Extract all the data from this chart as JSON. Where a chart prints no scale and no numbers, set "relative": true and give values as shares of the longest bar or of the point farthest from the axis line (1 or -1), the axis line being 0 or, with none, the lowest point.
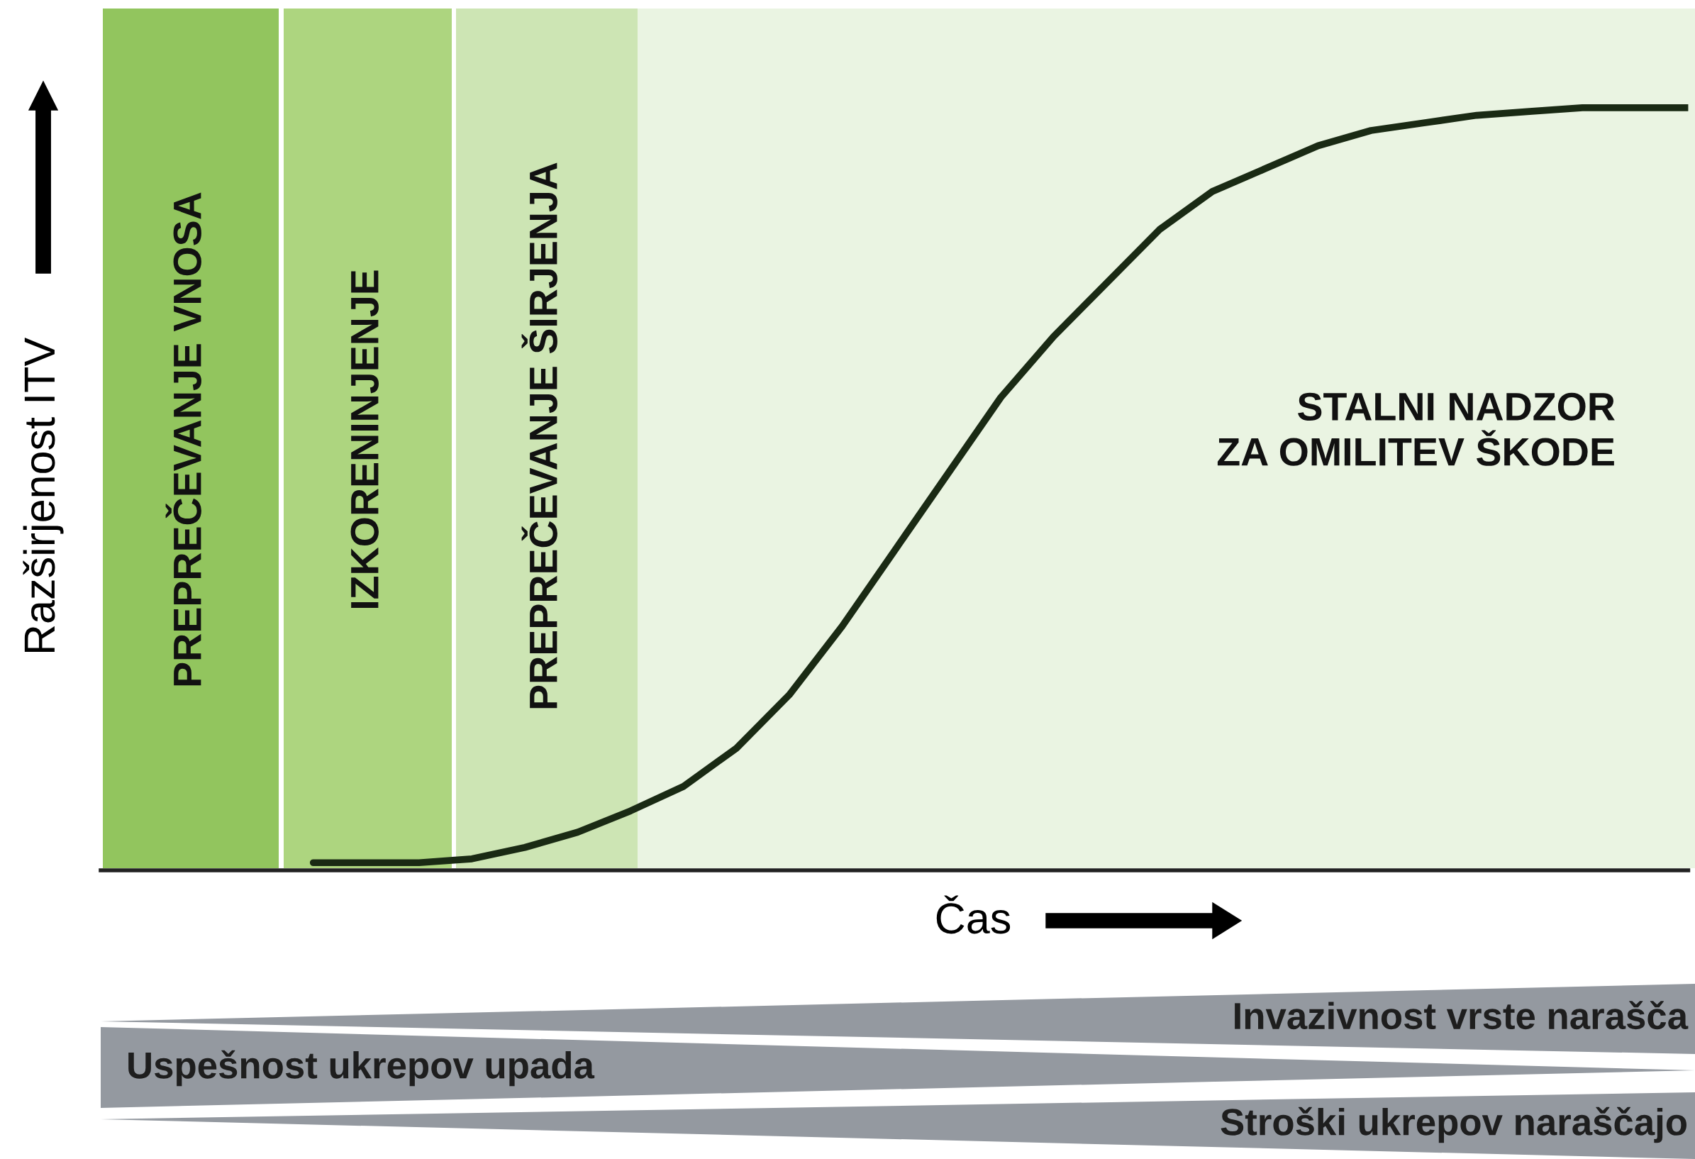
{
  "chart_data": {
    "type": "line",
    "relative": true,
    "xlabel": "Čas",
    "ylabel": "Razširjenost ITV",
    "categories": [
      null,
      null,
      null,
      null,
      null,
      null,
      null,
      null,
      null,
      null,
      null,
      null,
      null,
      null,
      null,
      null,
      null,
      null,
      null,
      null,
      null,
      null,
      null,
      null,
      null,
      null,
      null,
      null,
      null,
      null,
      null
    ],
    "series": [
      {
        "color": "#1a2a14",
        "values": [
          null,
          null,
          null,
          null,
          0.01,
          0.01,
          0.01,
          0.015,
          0.03,
          0.05,
          0.078,
          0.11,
          0.16,
          0.23,
          0.32,
          0.42,
          0.52,
          0.62,
          0.7,
          0.77,
          0.84,
          0.89,
          0.92,
          0.95,
          0.97,
          0.98,
          0.99,
          0.995,
          1,
          1,
          1
        ]
      }
    ],
    "annotations": [
      "PREPREČEVANJE VNOSA",
      "IZKORENINJENJE",
      "PREPREČEVANJE ŠIRJENJA",
      "STALNI NADZOR\nZA OMILITEV ŠKODE",
      "Invazivnost vrste narašča",
      "Uspešnost ukrepov upada",
      "Stroški ukrepov naraščajo"
    ],
    "legend": false,
    "line_style": "solid"
  }
}
